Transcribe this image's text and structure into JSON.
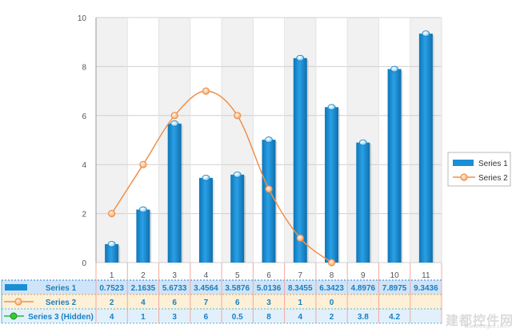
{
  "colors": {
    "series1": "#1a8fd6",
    "series2": "#f0904a",
    "series3": "#2eb82e",
    "band": "#f1f1f1",
    "grid": "#d0d0d0",
    "axis_text": "#555555",
    "table_text": "#1a7fc0"
  },
  "chart_data": {
    "type": "bar",
    "x": [
      1,
      2,
      3,
      4,
      5,
      6,
      7,
      8,
      9,
      10,
      11
    ],
    "ylim": [
      0,
      10
    ],
    "yticks": [
      0,
      2,
      4,
      6,
      8,
      10
    ],
    "grid": true,
    "legend": "right",
    "series": [
      {
        "name": "Series 1",
        "type": "bar",
        "values": [
          0.7523,
          2.1635,
          5.6733,
          3.4564,
          3.5876,
          5.0136,
          8.3455,
          6.3423,
          4.8976,
          7.8975,
          9.3436
        ],
        "labels": [
          "0.7523",
          "2.1635",
          "5.6733",
          "3.4564",
          "3.5876",
          "5.0136",
          "8.3455",
          "6.3423",
          "4.8976",
          "7.8975",
          "9.3436"
        ]
      },
      {
        "name": "Series 2",
        "type": "spline",
        "values": [
          2,
          4,
          6,
          7,
          6,
          3,
          1,
          0,
          null,
          null,
          null
        ],
        "labels": [
          "2",
          "4",
          "6",
          "7",
          "6",
          "3",
          "1",
          "0",
          "",
          "",
          ""
        ]
      },
      {
        "name": "Series 3 (Hidden)",
        "type": "line",
        "hidden": true,
        "values": [
          4,
          1,
          3,
          6,
          0.5,
          8,
          4,
          2,
          3.8,
          4.2,
          null
        ],
        "labels": [
          "4",
          "1",
          "3",
          "6",
          "0.5",
          "8",
          "4",
          "2",
          "3.8",
          "4.2",
          ""
        ]
      }
    ]
  },
  "watermark": {
    "text": "建都控件网",
    "sub": "www.evget.com"
  }
}
